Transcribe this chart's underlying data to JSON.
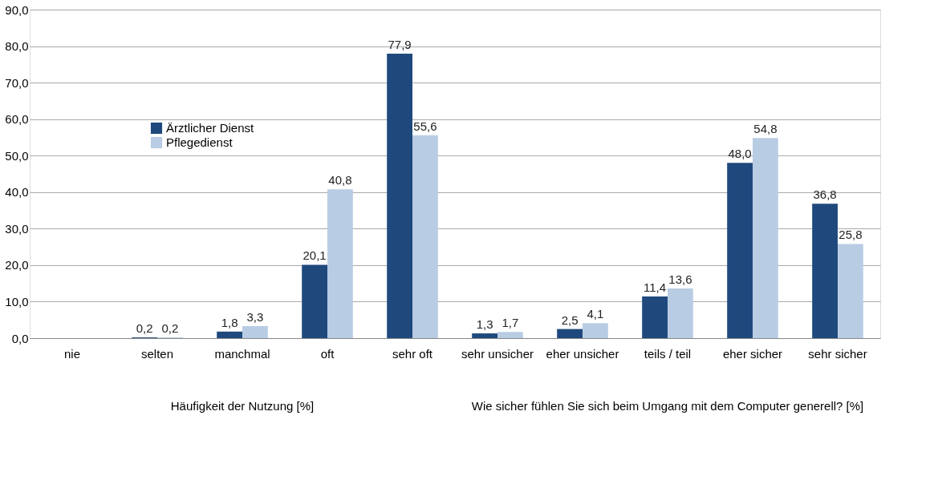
{
  "chart_data": {
    "type": "bar",
    "categories": [
      "nie",
      "selten",
      "manchmal",
      "oft",
      "sehr oft",
      "sehr unsicher",
      "eher unsicher",
      "teils / teil",
      "eher sicher",
      "sehr sicher"
    ],
    "series": [
      {
        "name": "Ärztlicher Dienst",
        "color": "#1f497d",
        "values": [
          null,
          0.2,
          1.8,
          20.1,
          77.9,
          1.3,
          2.5,
          11.4,
          48.0,
          36.8
        ],
        "value_labels": [
          null,
          "0,2",
          "1,8",
          "20,1",
          "77,9",
          "1,3",
          "2,5",
          "11,4",
          "48,0",
          "36,8"
        ]
      },
      {
        "name": "Pflegedienst",
        "color": "#b8cce4",
        "values": [
          null,
          0.2,
          3.3,
          40.8,
          55.6,
          1.7,
          4.1,
          13.6,
          54.8,
          25.8
        ],
        "value_labels": [
          null,
          "0,2",
          "3,3",
          "40,8",
          "55,6",
          "1,7",
          "4,1",
          "13,6",
          "54,8",
          "25,8"
        ]
      }
    ],
    "ylim": [
      0,
      90
    ],
    "yticks": [
      {
        "value": 0,
        "label": "0,0"
      },
      {
        "value": 10,
        "label": "10,0"
      },
      {
        "value": 20,
        "label": "20,0"
      },
      {
        "value": 30,
        "label": "30,0"
      },
      {
        "value": 40,
        "label": "40,0"
      },
      {
        "value": 50,
        "label": "50,0"
      },
      {
        "value": 60,
        "label": "60,0"
      },
      {
        "value": 70,
        "label": "70,0"
      },
      {
        "value": 80,
        "label": "80,0"
      },
      {
        "value": 90,
        "label": "90,0"
      }
    ],
    "annotations": [
      "Häufigkeit der Nutzung [%]",
      "Wie sicher fühlen Sie sich beim Umgang mit dem Computer generell? [%]"
    ],
    "grid": "y",
    "legend": "top left"
  }
}
